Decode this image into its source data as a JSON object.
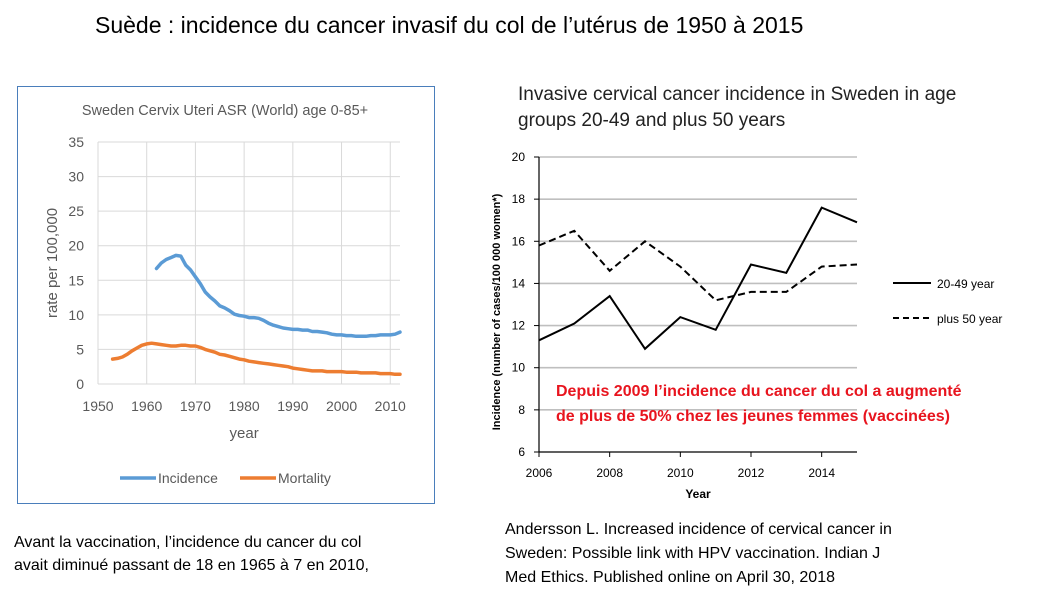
{
  "slide": {
    "title": "Suède : incidence du cancer invasif du col de l’utérus de 1950 à 2015",
    "caption_left_lines": [
      "Avant la vaccination, l’incidence du cancer du col",
      "avait diminué passant de 18 en 1965 à 7 en 2010,"
    ],
    "caption_right_lines": [
      "Andersson L. Increased incidence of cervical cancer in",
      "Sweden: Possible link with HPV vaccination. Indian J",
      "Med Ethics. Published online on April 30, 2018"
    ],
    "red_note_lines": [
      "Depuis 2009 l’incidence du cancer du col a augmenté",
      "de plus de 50% chez les jeunes femmes (vaccinées)"
    ]
  },
  "chart_data": [
    {
      "type": "line",
      "title": "Sweden Cervix Uteri ASR (World) age 0-85+",
      "xlabel": "year",
      "ylabel": "rate per 100,000",
      "xlim": [
        1950,
        2012
      ],
      "ylim": [
        0,
        35
      ],
      "xticks": [
        "1950",
        "1960",
        "1970",
        "1980",
        "1990",
        "2000",
        "2010"
      ],
      "yticks": [
        "0",
        "5",
        "10",
        "15",
        "20",
        "25",
        "30",
        "35"
      ],
      "grid": true,
      "legend_position": "bottom",
      "series": [
        {
          "name": "Incidence",
          "color": "#5b9bd5",
          "x": [
            1962,
            1963,
            1964,
            1965,
            1966,
            1967,
            1968,
            1969,
            1970,
            1971,
            1972,
            1973,
            1974,
            1975,
            1976,
            1977,
            1978,
            1979,
            1980,
            1981,
            1982,
            1983,
            1984,
            1985,
            1986,
            1987,
            1988,
            1989,
            1990,
            1991,
            1992,
            1993,
            1994,
            1995,
            1996,
            1997,
            1998,
            1999,
            2000,
            2001,
            2002,
            2003,
            2004,
            2005,
            2006,
            2007,
            2008,
            2009,
            2010,
            2011,
            2012
          ],
          "y": [
            16.7,
            17.5,
            18.0,
            18.3,
            18.6,
            18.5,
            17.2,
            16.5,
            15.5,
            14.5,
            13.3,
            12.6,
            12.0,
            11.3,
            11.0,
            10.6,
            10.1,
            9.9,
            9.8,
            9.6,
            9.6,
            9.5,
            9.2,
            8.8,
            8.5,
            8.3,
            8.1,
            8.0,
            7.9,
            7.9,
            7.8,
            7.8,
            7.6,
            7.6,
            7.5,
            7.4,
            7.2,
            7.1,
            7.1,
            7.0,
            7.0,
            6.9,
            6.9,
            6.9,
            7.0,
            7.0,
            7.1,
            7.1,
            7.1,
            7.2,
            7.5
          ]
        },
        {
          "name": "Mortality",
          "color": "#ed7d31",
          "x": [
            1953,
            1954,
            1955,
            1956,
            1957,
            1958,
            1959,
            1960,
            1961,
            1962,
            1963,
            1964,
            1965,
            1966,
            1967,
            1968,
            1969,
            1970,
            1971,
            1972,
            1973,
            1974,
            1975,
            1976,
            1977,
            1978,
            1979,
            1980,
            1981,
            1982,
            1983,
            1984,
            1985,
            1986,
            1987,
            1988,
            1989,
            1990,
            1991,
            1992,
            1993,
            1994,
            1995,
            1996,
            1997,
            1998,
            1999,
            2000,
            2001,
            2002,
            2003,
            2004,
            2005,
            2006,
            2007,
            2008,
            2009,
            2010,
            2011,
            2012
          ],
          "y": [
            3.6,
            3.7,
            3.9,
            4.3,
            4.8,
            5.2,
            5.6,
            5.8,
            5.9,
            5.8,
            5.7,
            5.6,
            5.5,
            5.5,
            5.6,
            5.6,
            5.5,
            5.5,
            5.3,
            5.0,
            4.8,
            4.6,
            4.3,
            4.2,
            4.0,
            3.8,
            3.6,
            3.5,
            3.3,
            3.2,
            3.1,
            3.0,
            2.9,
            2.8,
            2.7,
            2.6,
            2.5,
            2.3,
            2.2,
            2.1,
            2.0,
            1.9,
            1.9,
            1.9,
            1.8,
            1.8,
            1.8,
            1.8,
            1.7,
            1.7,
            1.7,
            1.6,
            1.6,
            1.6,
            1.6,
            1.5,
            1.5,
            1.5,
            1.4,
            1.4
          ]
        }
      ]
    },
    {
      "type": "line",
      "title": "Invasive cervical cancer incidence in Sweden in age groups 20-49 and plus 50 years",
      "title_lines": [
        "Invasive cervical cancer incidence in Sweden in age",
        "groups 20-49 and plus 50 years"
      ],
      "xlabel": "Year",
      "ylabel": "Incidence (number of cases/100 000 women*)",
      "xlim": [
        2006,
        2015
      ],
      "ylim": [
        6,
        20
      ],
      "xticks": [
        "2006",
        "2008",
        "2010",
        "2012",
        "2014"
      ],
      "yticks": [
        "6",
        "8",
        "10",
        "12",
        "14",
        "16",
        "18",
        "20"
      ],
      "grid": true,
      "legend_position": "right",
      "series": [
        {
          "name": "20-49 year",
          "style": "solid",
          "color": "#000000",
          "x": [
            2006,
            2007,
            2008,
            2009,
            2010,
            2011,
            2012,
            2013,
            2014,
            2015
          ],
          "y": [
            11.3,
            12.1,
            13.4,
            10.9,
            12.4,
            11.8,
            14.9,
            14.5,
            17.6,
            16.9
          ]
        },
        {
          "name": "plus 50 year",
          "style": "dashed",
          "color": "#000000",
          "x": [
            2006,
            2007,
            2008,
            2009,
            2010,
            2011,
            2012,
            2013,
            2014,
            2015
          ],
          "y": [
            15.8,
            16.5,
            14.6,
            16.0,
            14.8,
            13.2,
            13.6,
            13.6,
            14.8,
            14.9
          ]
        }
      ]
    }
  ]
}
